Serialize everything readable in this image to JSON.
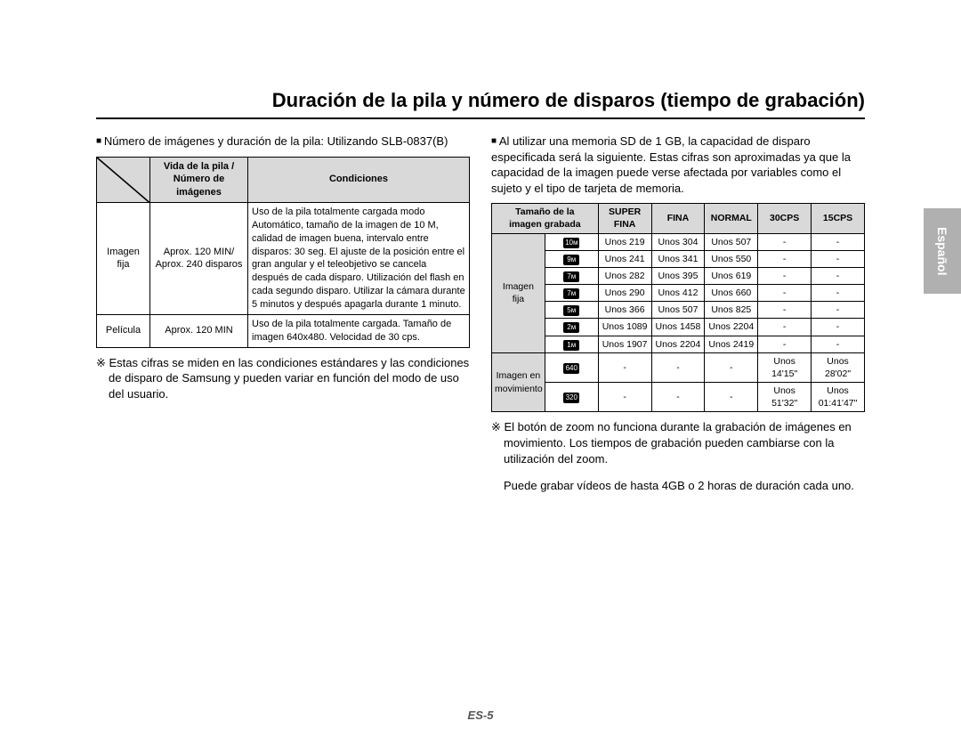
{
  "title": "Duración de la pila y número de disparos (tiempo de grabación)",
  "side_tab": "Español",
  "page_num": "ES-5",
  "left": {
    "lead": "Número de imágenes y duración de la pila: Utilizando SLB-0837(B)",
    "headers": {
      "col1": "",
      "col2": "Vida de la pila /\nNúmero de imágenes",
      "col3": "Condiciones"
    },
    "rows": [
      {
        "c1": "Imagen fija",
        "c2": "Aprox. 120 MIN/\nAprox. 240 disparos",
        "c3": "Uso de la pila totalmente cargada modo Automático, tamaño de la imagen de 10 M, calidad de imagen buena, intervalo entre disparos: 30 seg. El ajuste de la posición entre el gran angular y el teleobjetivo se cancela después de cada disparo. Utilización del flash en cada segundo disparo. Utilizar la cámara durante 5 minutos y después apagarla durante 1 minuto."
      },
      {
        "c1": "Película",
        "c2": "Aprox. 120 MIN",
        "c3": "Uso de la pila totalmente cargada. Tamaño de imagen 640x480. Velocidad de 30 cps."
      }
    ],
    "note": "Estas cifras se miden en las condiciones estándares y las condiciones de disparo de Samsung y pueden variar en función del modo de uso del usuario."
  },
  "right": {
    "lead": "Al utilizar una memoria SD de 1 GB, la capacidad de disparo especificada será la siguiente. Estas cifras son aproximadas ya que la capacidad de la imagen puede verse afectada por variables como el sujeto y el tipo de tarjeta de memoria.",
    "col_headers": [
      "Tamaño de la\nimagen grabada",
      "SUPER\nFINA",
      "FINA",
      "NORMAL",
      "30CPS",
      "15CPS"
    ],
    "group1_label": "Imagen\nfija",
    "group2_label": "Imagen en\nmovimiento",
    "rows_still": [
      {
        "icon": "10ᴍ",
        "sf": "Unos 219",
        "f": "Unos 304",
        "n": "Unos 507",
        "c30": "-",
        "c15": "-"
      },
      {
        "icon": "9ᴍ",
        "sf": "Unos 241",
        "f": "Unos 341",
        "n": "Unos 550",
        "c30": "-",
        "c15": "-"
      },
      {
        "icon": "7ᴍ",
        "sf": "Unos 282",
        "f": "Unos 395",
        "n": "Unos 619",
        "c30": "-",
        "c15": "-"
      },
      {
        "icon": "7ᴍ",
        "sf": "Unos 290",
        "f": "Unos 412",
        "n": "Unos 660",
        "c30": "-",
        "c15": "-"
      },
      {
        "icon": "5ᴍ",
        "sf": "Unos 366",
        "f": "Unos 507",
        "n": "Unos 825",
        "c30": "-",
        "c15": "-"
      },
      {
        "icon": "2ᴍ",
        "sf": "Unos 1089",
        "f": "Unos 1458",
        "n": "Unos 2204",
        "c30": "-",
        "c15": "-"
      },
      {
        "icon": "1ᴍ",
        "sf": "Unos 1907",
        "f": "Unos 2204",
        "n": "Unos 2419",
        "c30": "-",
        "c15": "-"
      }
    ],
    "rows_movie": [
      {
        "icon": "640",
        "sf": "-",
        "f": "-",
        "n": "-",
        "c30": "Unos 14'15\"",
        "c15": "Unos 28'02\""
      },
      {
        "icon": "320",
        "sf": "-",
        "f": "-",
        "n": "-",
        "c30": "Unos 51'32\"",
        "c15": "Unos 01:41'47\""
      }
    ],
    "note": "El botón de zoom no funciona durante la grabación de imágenes en movimiento. Los tiempos de grabación pueden cambiarse con la utilización del zoom.",
    "note2": "Puede grabar vídeos de hasta 4GB o 2 horas de duración cada uno."
  }
}
